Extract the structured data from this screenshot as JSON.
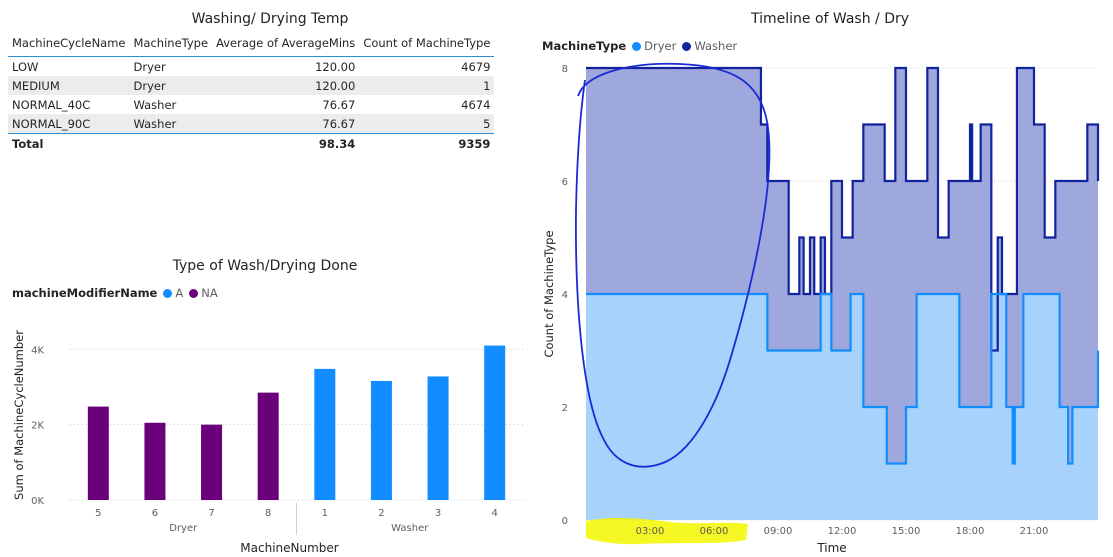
{
  "table": {
    "title": "Washing/ Drying Temp",
    "headers": [
      "MachineCycleName",
      "MachineType",
      "Average of AverageMins",
      "Count of MachineType"
    ],
    "rows": [
      [
        "LOW",
        "Dryer",
        "120.00",
        "4679"
      ],
      [
        "MEDIUM",
        "Dryer",
        "120.00",
        "1"
      ],
      [
        "NORMAL_40C",
        "Washer",
        "76.67",
        "4674"
      ],
      [
        "NORMAL_90C",
        "Washer",
        "76.67",
        "5"
      ]
    ],
    "total": [
      "Total",
      "",
      "98.34",
      "9359"
    ]
  },
  "chart_data": [
    {
      "type": "bar",
      "title": "Type of Wash/Drying Done",
      "legend_title": "machineModifierName",
      "legend_position": "top-left",
      "xlabel": "MachineNumber",
      "ylabel": "Sum of MachineCycleNumber",
      "ylim": [
        0,
        4300
      ],
      "yticks": [
        0,
        2000,
        4000
      ],
      "yticklabels": [
        "0K",
        "2K",
        "4K"
      ],
      "grid": true,
      "groups": [
        {
          "name": "Dryer",
          "categories": [
            "5",
            "6",
            "7",
            "8"
          ]
        },
        {
          "name": "Washer",
          "categories": [
            "1",
            "2",
            "3",
            "4"
          ]
        }
      ],
      "categories": [
        "5",
        "6",
        "7",
        "8",
        "1",
        "2",
        "3",
        "4"
      ],
      "values": [
        2480,
        2050,
        2000,
        2850,
        3480,
        3160,
        3280,
        4100
      ],
      "series": [
        {
          "name": "A",
          "color": "#118dff",
          "categories": [
            "1",
            "2",
            "3",
            "4"
          ]
        },
        {
          "name": "NA",
          "color": "#6b007b",
          "categories": [
            "5",
            "6",
            "7",
            "8"
          ]
        }
      ]
    },
    {
      "type": "area",
      "title": "Timeline of Wash / Dry",
      "legend_title": "MachineType",
      "legend_position": "top-left",
      "xlabel": "Time",
      "ylabel": "Count of MachineType",
      "ylim": [
        0,
        8
      ],
      "yticks": [
        0,
        2,
        4,
        6,
        8
      ],
      "xlim": [
        0,
        24
      ],
      "xticks": [
        "03:00",
        "06:00",
        "09:00",
        "12:00",
        "15:00",
        "18:00",
        "21:00"
      ],
      "grid": true,
      "step": true,
      "series": [
        {
          "name": "Dryer",
          "color": "#118dff",
          "fill": "#a6d2fb",
          "x": [
            0,
            8,
            8.5,
            10.5,
            11,
            11.5,
            11.7,
            12.4,
            12.6,
            13,
            14,
            14.1,
            15,
            15.5,
            17,
            17.5,
            18.5,
            19,
            19.1,
            19.7,
            19.8,
            20,
            20.1,
            20.5,
            21,
            22.2,
            22.5,
            22.6,
            22.8,
            23.1,
            24
          ],
          "y": [
            4,
            4,
            3,
            3,
            4,
            3,
            3,
            4,
            4,
            2,
            2,
            1,
            2,
            4,
            4,
            2,
            2,
            4,
            4,
            2,
            2,
            1,
            2,
            4,
            4,
            2,
            2,
            1,
            2,
            2,
            3
          ]
        },
        {
          "name": "Washer",
          "color": "#12239e",
          "fill": "#9fa8dc",
          "x": [
            0,
            8,
            8.2,
            8.5,
            9.5,
            10,
            10.2,
            10.5,
            10.7,
            11,
            11.2,
            11.5,
            12,
            12.5,
            13,
            14,
            14.5,
            15,
            16,
            16.5,
            17,
            18,
            18.1,
            18.5,
            19,
            19.3,
            19.5,
            20,
            20.2,
            21,
            21.5,
            22,
            22.5,
            23,
            23.5,
            24
          ],
          "y": [
            8,
            8,
            7,
            6,
            4,
            5,
            4,
            5,
            4,
            5,
            4,
            6,
            5,
            6,
            7,
            6,
            8,
            6,
            8,
            5,
            6,
            7,
            6,
            7,
            3,
            5,
            4,
            4,
            8,
            7,
            5,
            6,
            6,
            6,
            7,
            6
          ]
        }
      ]
    }
  ],
  "annotations": {
    "ink_color": "#1a2ad6",
    "highlight_color": "#f4f700"
  }
}
